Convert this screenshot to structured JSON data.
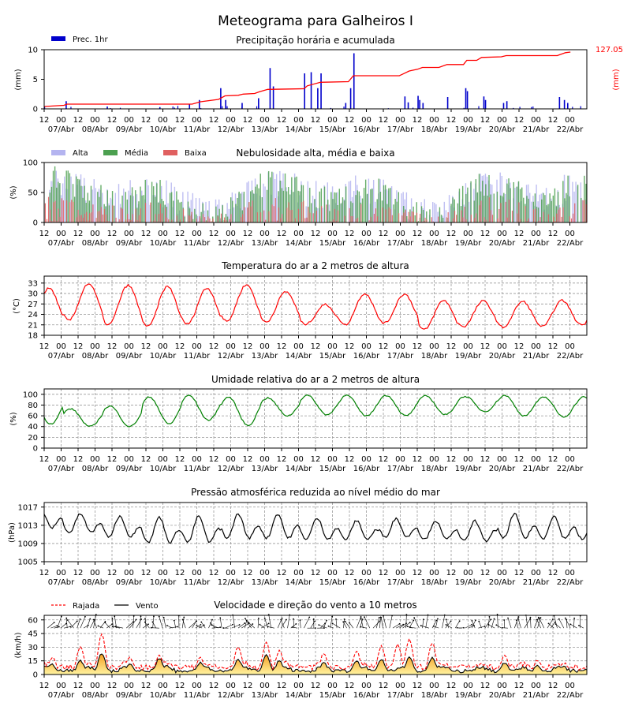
{
  "title": "Meteograma para Galheiros I",
  "x_axis": {
    "tick_labels": [
      "12",
      "00",
      "12",
      "00",
      "12",
      "00",
      "12",
      "00",
      "12",
      "00",
      "12",
      "00",
      "12",
      "00",
      "12",
      "00",
      "12",
      "00",
      "12",
      "00",
      "12",
      "00",
      "12",
      "00",
      "12",
      "00",
      "12",
      "00",
      "12",
      "00",
      "12",
      "00"
    ],
    "day_labels": [
      "07/Abr",
      "08/Abr",
      "09/Abr",
      "10/Abr",
      "11/Abr",
      "12/Abr",
      "13/Abr",
      "14/Abr",
      "15/Abr",
      "16/Abr",
      "17/Abr",
      "18/Abr",
      "19/Abr",
      "20/Abr",
      "21/Abr",
      "22/Abr"
    ]
  },
  "colors": {
    "precip_bar": "#0000cc",
    "accum_line": "#ff0000",
    "cloud_high": "#b4b4f0",
    "cloud_mid": "#4ca050",
    "cloud_low": "#e06060",
    "temperature": "#ff0000",
    "humidity": "#008000",
    "pressure": "#000000",
    "gust": "#ff0000",
    "wind": "#000000"
  },
  "chart_data": [
    {
      "type": "bar",
      "title": "Precipitação horária e acumulada",
      "ylabel": "(mm)",
      "ylabel_right": "(mm)",
      "ylim": [
        0,
        10
      ],
      "yticks": [
        "0",
        "5",
        "10"
      ],
      "legend": [
        {
          "name": "Prec. 1hr"
        }
      ],
      "accumulated_total_label": "127.05",
      "hourly_spikes": [
        [
          13,
          1.3
        ],
        [
          38,
          0.4
        ],
        [
          70,
          0.3
        ],
        [
          88,
          0.8
        ],
        [
          94,
          1.5
        ],
        [
          107,
          3.5
        ],
        [
          110,
          1.5
        ],
        [
          120,
          1.0
        ],
        [
          130,
          1.8
        ],
        [
          137,
          6.9
        ],
        [
          139,
          3.8
        ],
        [
          158,
          6.0
        ],
        [
          162,
          6.2
        ],
        [
          166,
          3.5
        ],
        [
          168,
          6.0
        ],
        [
          183,
          1.0
        ],
        [
          186,
          3.5
        ],
        [
          188,
          9.4
        ],
        [
          219,
          2.1
        ],
        [
          221,
          1.1
        ],
        [
          227,
          2.2
        ],
        [
          228,
          1.5
        ],
        [
          230,
          1.0
        ],
        [
          245,
          2.0
        ],
        [
          256,
          3.5
        ],
        [
          257,
          3.0
        ],
        [
          267,
          2.1
        ],
        [
          268,
          1.5
        ],
        [
          279,
          1.0
        ],
        [
          281,
          1.3
        ],
        [
          313,
          2.0
        ],
        [
          316,
          1.5
        ],
        [
          318,
          1.0
        ]
      ],
      "accumulated_scaled": [
        [
          0,
          0.4
        ],
        [
          12,
          0.6
        ],
        [
          14,
          0.8
        ],
        [
          90,
          0.8
        ],
        [
          95,
          1.2
        ],
        [
          106,
          1.6
        ],
        [
          110,
          2.2
        ],
        [
          118,
          2.3
        ],
        [
          121,
          2.5
        ],
        [
          128,
          2.6
        ],
        [
          131,
          2.9
        ],
        [
          136,
          3.3
        ],
        [
          158,
          3.4
        ],
        [
          160,
          3.9
        ],
        [
          168,
          4.5
        ],
        [
          185,
          4.6
        ],
        [
          188,
          5.6
        ],
        [
          216,
          5.6
        ],
        [
          222,
          6.4
        ],
        [
          227,
          6.7
        ],
        [
          230,
          7.0
        ],
        [
          240,
          7.0
        ],
        [
          245,
          7.5
        ],
        [
          255,
          7.5
        ],
        [
          257,
          8.2
        ],
        [
          263,
          8.2
        ],
        [
          266,
          8.7
        ],
        [
          278,
          8.8
        ],
        [
          281,
          9.0
        ],
        [
          312,
          9.0
        ],
        [
          314,
          9.2
        ],
        [
          317,
          9.5
        ],
        [
          320,
          9.6
        ]
      ]
    },
    {
      "type": "bar",
      "title": "Nebulosidade alta, média e baixa",
      "ylabel": "(%)",
      "ylim": [
        0,
        100
      ],
      "yticks": [
        "0",
        "50",
        "100"
      ],
      "series": [
        {
          "name": "Alta"
        },
        {
          "name": "Média"
        },
        {
          "name": "Baixa"
        }
      ]
    },
    {
      "type": "line",
      "title": "Temperatura do ar a 2 metros de altura",
      "ylabel": "(°C)",
      "ylim": [
        18,
        35
      ],
      "yticks": [
        "18",
        "21",
        "24",
        "27",
        "30",
        "33"
      ],
      "daily_max": [
        31.5,
        32.8,
        32.3,
        32.0,
        31.5,
        32.5,
        30.5,
        26.8,
        30.0,
        29.8,
        28.0,
        27.8,
        27.7,
        28.0,
        28.5,
        30.0
      ],
      "daily_min": [
        21.0,
        22.3,
        21.0,
        20.5,
        21.2,
        22.0,
        21.8,
        21.2,
        21.0,
        21.5,
        19.6,
        20.5,
        20.3,
        20.5,
        21.0,
        22.0
      ]
    },
    {
      "type": "line",
      "title": "Umidade relativa do ar a 2 metros de altura",
      "ylabel": "(%)",
      "ylim": [
        0,
        110
      ],
      "yticks": [
        "0",
        "20",
        "40",
        "60",
        "80",
        "100"
      ],
      "daily_max": [
        93,
        73,
        78,
        95,
        98,
        95,
        93,
        98,
        98,
        98,
        97,
        96,
        98,
        95,
        95,
        97
      ],
      "daily_min": [
        45,
        40,
        40,
        45,
        52,
        42,
        60,
        62,
        60,
        60,
        62,
        68,
        60,
        58,
        55,
        58
      ]
    },
    {
      "type": "line",
      "title": "Pressão atmosférica reduzida ao nível médio do mar",
      "ylabel": "(hPa)",
      "ylim": [
        1005,
        1018
      ],
      "yticks": [
        "1005",
        "1009",
        "1013",
        "1017"
      ],
      "daily_max": [
        1016.5,
        1015.5,
        1015.0,
        1014.8,
        1015.0,
        1015.5,
        1015.5,
        1014.5,
        1014.0,
        1014.5,
        1014.0,
        1014.0,
        1015.5,
        1015.0,
        1014.0,
        1012.5
      ],
      "daily_min": [
        1011.5,
        1010.5,
        1009.5,
        1008.0,
        1008.0,
        1009.0,
        1009.0,
        1009.0,
        1009.0,
        1009.5,
        1009.0,
        1008.5,
        1009.0,
        1009.0,
        1009.0,
        1008.0
      ]
    },
    {
      "type": "line",
      "title": "Velocidade e direção do vento a 10 metros",
      "ylabel": "(km/h)",
      "ylim": [
        0,
        65
      ],
      "yticks": [
        "0",
        "15",
        "30",
        "45",
        "60"
      ],
      "series": [
        {
          "name": "Rajada"
        },
        {
          "name": "Vento"
        }
      ],
      "gust_peaks": [
        [
          5,
          18
        ],
        [
          22,
          30
        ],
        [
          35,
          43
        ],
        [
          52,
          18
        ],
        [
          70,
          20
        ],
        [
          95,
          18
        ],
        [
          118,
          30
        ],
        [
          135,
          35
        ],
        [
          143,
          25
        ],
        [
          170,
          22
        ],
        [
          190,
          25
        ],
        [
          205,
          30
        ],
        [
          215,
          32
        ],
        [
          222,
          38
        ],
        [
          236,
          34
        ],
        [
          280,
          20
        ],
        [
          300,
          15
        ]
      ],
      "wind_peaks": [
        [
          5,
          10
        ],
        [
          22,
          14
        ],
        [
          35,
          22
        ],
        [
          52,
          10
        ],
        [
          70,
          17
        ],
        [
          95,
          12
        ],
        [
          118,
          15
        ],
        [
          135,
          20
        ],
        [
          143,
          14
        ],
        [
          170,
          12
        ],
        [
          190,
          14
        ],
        [
          205,
          16
        ],
        [
          222,
          18
        ],
        [
          236,
          17
        ],
        [
          280,
          12
        ],
        [
          300,
          9
        ]
      ]
    }
  ]
}
